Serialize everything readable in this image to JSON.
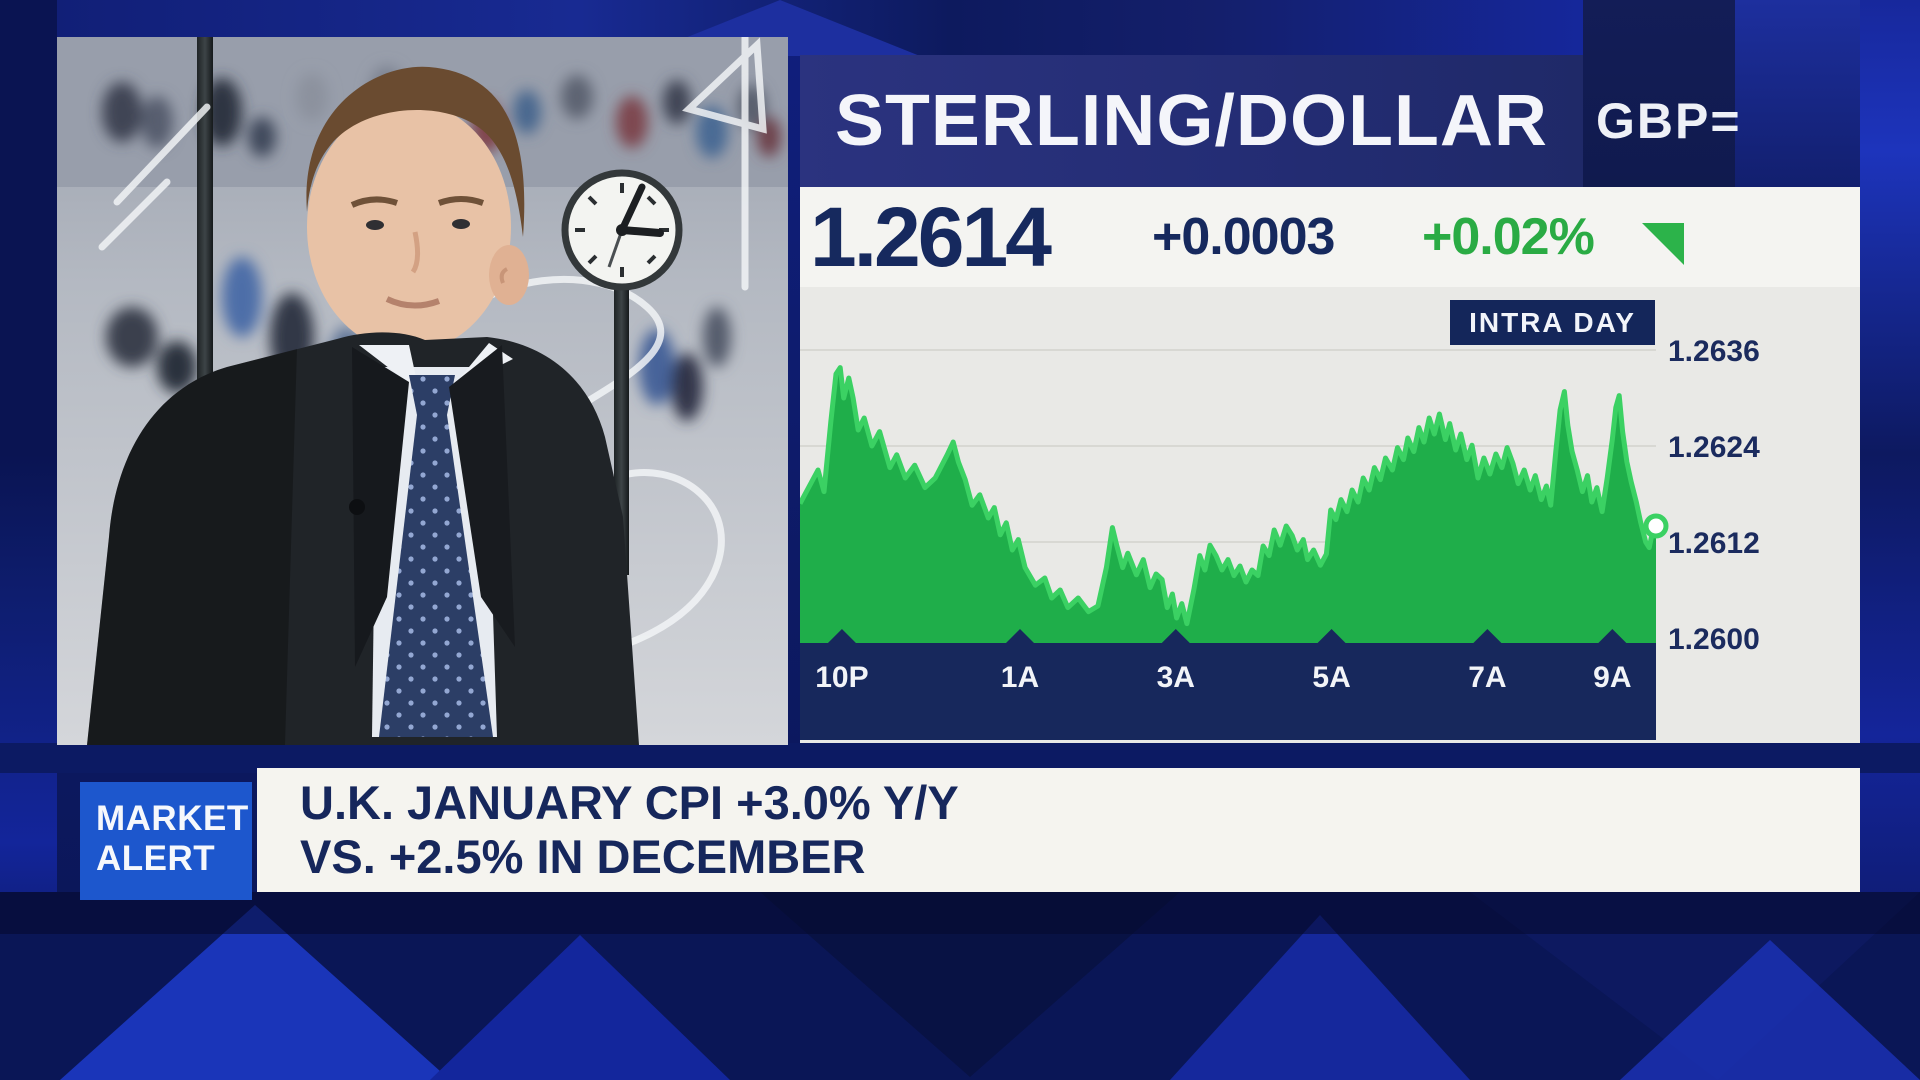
{
  "quote": {
    "title": "STERLING/DOLLAR",
    "symbol": "GBP=",
    "last": "1.2614",
    "change_abs": "+0.0003",
    "change_pct": "+0.02%"
  },
  "alert": {
    "badge": [
      "MARKET",
      "ALERT"
    ],
    "headline": [
      "U.K. JANUARY CPI +3.0% Y/Y",
      "VS. +2.5% IN DECEMBER"
    ]
  },
  "colors": {
    "accent_green": "#2cb34a",
    "line_green": "#3bd163",
    "area_green": "#1fae4a",
    "navy_text": "#1b2b5e",
    "bar_navy": "#17285c",
    "alert_blue": "#1d57cd",
    "chart_bg": "#e9e9e6",
    "gridline": "#d8d8d3",
    "panel_white": "#f4f4f1"
  },
  "chart_data": {
    "type": "area",
    "title": "INTRA DAY",
    "instrument": "GBP= Sterling/Dollar intraday",
    "ylim": [
      1.2594,
      1.2644
    ],
    "grid": true,
    "legend_position": "none",
    "last_value": 1.2614,
    "y_ticks": [
      {
        "label": "1.2636",
        "value": 1.2636
      },
      {
        "label": "1.2624",
        "value": 1.2624
      },
      {
        "label": "1.2612",
        "value": 1.2612
      },
      {
        "label": "1.2600",
        "value": 1.26
      }
    ],
    "x_ticks": [
      {
        "label": "10P",
        "pos": 0.049
      },
      {
        "label": "1A",
        "pos": 0.257
      },
      {
        "label": "3A",
        "pos": 0.439
      },
      {
        "label": "5A",
        "pos": 0.621
      },
      {
        "label": "7A",
        "pos": 0.803
      },
      {
        "label": "9A",
        "pos": 0.949
      }
    ],
    "series": [
      {
        "name": "GBP=",
        "color": "#1fae4a",
        "points": [
          [
            0,
            1.26168
          ],
          [
            0.021,
            1.2621
          ],
          [
            0.028,
            1.26183
          ],
          [
            0.036,
            1.2627
          ],
          [
            0.042,
            1.2633
          ],
          [
            0.047,
            1.26338
          ],
          [
            0.051,
            1.263
          ],
          [
            0.057,
            1.26325
          ],
          [
            0.062,
            1.263
          ],
          [
            0.068,
            1.2626
          ],
          [
            0.075,
            1.26275
          ],
          [
            0.084,
            1.2624
          ],
          [
            0.093,
            1.26258
          ],
          [
            0.105,
            1.26213
          ],
          [
            0.113,
            1.26229
          ],
          [
            0.123,
            1.262
          ],
          [
            0.134,
            1.26216
          ],
          [
            0.146,
            1.26188
          ],
          [
            0.158,
            1.262
          ],
          [
            0.172,
            1.26229
          ],
          [
            0.179,
            1.26245
          ],
          [
            0.185,
            1.2622
          ],
          [
            0.193,
            1.26198
          ],
          [
            0.201,
            1.26166
          ],
          [
            0.21,
            1.26179
          ],
          [
            0.22,
            1.2615
          ],
          [
            0.227,
            1.26163
          ],
          [
            0.234,
            1.26129
          ],
          [
            0.241,
            1.26144
          ],
          [
            0.248,
            1.2611
          ],
          [
            0.255,
            1.26123
          ],
          [
            0.263,
            1.26088
          ],
          [
            0.275,
            1.26066
          ],
          [
            0.286,
            1.26075
          ],
          [
            0.294,
            1.2605
          ],
          [
            0.304,
            1.2606
          ],
          [
            0.313,
            1.26038
          ],
          [
            0.325,
            1.2605
          ],
          [
            0.337,
            1.26033
          ],
          [
            0.348,
            1.2604
          ],
          [
            0.358,
            1.26088
          ],
          [
            0.365,
            1.26138
          ],
          [
            0.37,
            1.26116
          ],
          [
            0.377,
            1.26088
          ],
          [
            0.383,
            1.26106
          ],
          [
            0.393,
            1.26079
          ],
          [
            0.401,
            1.26098
          ],
          [
            0.409,
            1.26063
          ],
          [
            0.416,
            1.2608
          ],
          [
            0.423,
            1.26073
          ],
          [
            0.429,
            1.26038
          ],
          [
            0.435,
            1.26055
          ],
          [
            0.44,
            1.26025
          ],
          [
            0.446,
            1.26043
          ],
          [
            0.452,
            1.26018
          ],
          [
            0.46,
            1.2606
          ],
          [
            0.467,
            1.26103
          ],
          [
            0.473,
            1.26085
          ],
          [
            0.479,
            1.26116
          ],
          [
            0.486,
            1.26103
          ],
          [
            0.493,
            1.26085
          ],
          [
            0.5,
            1.26098
          ],
          [
            0.507,
            1.26078
          ],
          [
            0.514,
            1.2609
          ],
          [
            0.521,
            1.2607
          ],
          [
            0.528,
            1.26085
          ],
          [
            0.535,
            1.26078
          ],
          [
            0.541,
            1.26115
          ],
          [
            0.548,
            1.26103
          ],
          [
            0.554,
            1.26135
          ],
          [
            0.561,
            1.26116
          ],
          [
            0.568,
            1.2614
          ],
          [
            0.575,
            1.26128
          ],
          [
            0.581,
            1.2611
          ],
          [
            0.588,
            1.26123
          ],
          [
            0.593,
            1.26098
          ],
          [
            0.6,
            1.2611
          ],
          [
            0.608,
            1.26091
          ],
          [
            0.615,
            1.26105
          ],
          [
            0.62,
            1.2616
          ],
          [
            0.626,
            1.26148
          ],
          [
            0.632,
            1.26173
          ],
          [
            0.639,
            1.26158
          ],
          [
            0.645,
            1.26185
          ],
          [
            0.652,
            1.2617
          ],
          [
            0.658,
            1.262
          ],
          [
            0.665,
            1.26185
          ],
          [
            0.671,
            1.26213
          ],
          [
            0.678,
            1.26198
          ],
          [
            0.684,
            1.26225
          ],
          [
            0.692,
            1.2621
          ],
          [
            0.698,
            1.26238
          ],
          [
            0.705,
            1.26223
          ],
          [
            0.71,
            1.2625
          ],
          [
            0.717,
            1.26233
          ],
          [
            0.723,
            1.26263
          ],
          [
            0.729,
            1.26245
          ],
          [
            0.735,
            1.26275
          ],
          [
            0.741,
            1.26255
          ],
          [
            0.747,
            1.2628
          ],
          [
            0.754,
            1.26248
          ],
          [
            0.759,
            1.26268
          ],
          [
            0.766,
            1.26235
          ],
          [
            0.772,
            1.26255
          ],
          [
            0.779,
            1.26223
          ],
          [
            0.785,
            1.26241
          ],
          [
            0.792,
            1.262
          ],
          [
            0.799,
            1.26225
          ],
          [
            0.806,
            1.26205
          ],
          [
            0.813,
            1.2623
          ],
          [
            0.82,
            1.26213
          ],
          [
            0.826,
            1.26238
          ],
          [
            0.833,
            1.26218
          ],
          [
            0.839,
            1.26193
          ],
          [
            0.846,
            1.2621
          ],
          [
            0.853,
            1.26185
          ],
          [
            0.859,
            1.26203
          ],
          [
            0.866,
            1.26173
          ],
          [
            0.872,
            1.2619
          ],
          [
            0.877,
            1.26166
          ],
          [
            0.883,
            1.26233
          ],
          [
            0.888,
            1.26285
          ],
          [
            0.893,
            1.26308
          ],
          [
            0.897,
            1.26266
          ],
          [
            0.902,
            1.26233
          ],
          [
            0.908,
            1.2621
          ],
          [
            0.914,
            1.26183
          ],
          [
            0.92,
            1.26203
          ],
          [
            0.925,
            1.2617
          ],
          [
            0.931,
            1.26188
          ],
          [
            0.937,
            1.26158
          ],
          [
            0.943,
            1.262
          ],
          [
            0.949,
            1.26248
          ],
          [
            0.953,
            1.26288
          ],
          [
            0.957,
            1.26303
          ],
          [
            0.961,
            1.26258
          ],
          [
            0.966,
            1.2622
          ],
          [
            0.971,
            1.26195
          ],
          [
            0.977,
            1.2617
          ],
          [
            0.982,
            1.26145
          ],
          [
            0.988,
            1.2612
          ],
          [
            0.992,
            1.26113
          ],
          [
            0.996,
            1.26133
          ],
          [
            1,
            1.2614
          ]
        ]
      }
    ]
  }
}
